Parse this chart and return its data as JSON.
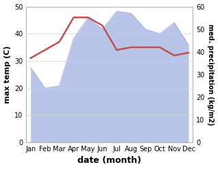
{
  "months": [
    "Jan",
    "Feb",
    "Mar",
    "Apr",
    "May",
    "Jun",
    "Jul",
    "Aug",
    "Sep",
    "Oct",
    "Nov",
    "Dec"
  ],
  "temperature": [
    31,
    34,
    37,
    46,
    46,
    43,
    34,
    35,
    35,
    35,
    32,
    33
  ],
  "precipitation": [
    33,
    24,
    25,
    46,
    55,
    50,
    58,
    57,
    50,
    48,
    53,
    43
  ],
  "temp_color": "#c0504d",
  "precip_fill_color": "#b8c4e8",
  "precip_line_color": "#8898cc",
  "left_ylim": [
    0,
    50
  ],
  "right_ylim": [
    0,
    60
  ],
  "left_yticks": [
    0,
    10,
    20,
    30,
    40,
    50
  ],
  "right_yticks": [
    0,
    10,
    20,
    30,
    40,
    50,
    60
  ],
  "left_ylabel": "max temp (C)",
  "right_ylabel": "med. precipitation (kg/m2)",
  "xlabel": "date (month)",
  "bg_color": "#ffffff",
  "grid_color": "#d0d0d0"
}
